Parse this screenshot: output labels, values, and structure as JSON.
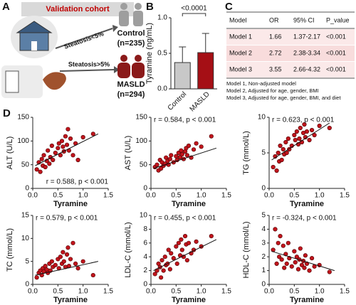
{
  "panel_a": {
    "label": "A",
    "header": "Validation cohort",
    "arrow_top": "Steatosis<5%",
    "arrow_bottom": "Steatosis>5%",
    "group_top": "Control",
    "group_top_n": "(n=235)",
    "group_bottom": "MASLD",
    "group_bottom_n": "(n=294)"
  },
  "panel_labels": {
    "b": "B",
    "c": "C",
    "d": "D"
  },
  "table": {
    "header": [
      "Model",
      "OR",
      "95% CI",
      "P_value"
    ],
    "rows": [
      [
        "Model 1",
        "1.66",
        "1.37-2.17",
        "<0.001"
      ],
      [
        "Model 2",
        "2.72",
        "2.38-3.34",
        "<0.001"
      ],
      [
        "Model 3",
        "3.55",
        "2.66-4.32",
        "<0.001"
      ]
    ],
    "notes": [
      "Model 1, Non-adjusted model",
      "Model 2, Adjusted for age, gender, BMI",
      "Model 3, Adjusted for age, gender, BMI, and diet"
    ]
  },
  "chart_data": [
    {
      "type": "bar",
      "ylabel": "Tyramine (ng/mL)",
      "categories": [
        "Control",
        "MASLD"
      ],
      "values": [
        0.37,
        0.51
      ],
      "errors": [
        0.22,
        0.27
      ],
      "colors": [
        "#c8c8c8",
        "#a50f15"
      ],
      "ylim": [
        0,
        1.0
      ],
      "yticks": [
        {
          "value": 0,
          "label": "0.0"
        },
        {
          "value": 0.5,
          "label": "0.5"
        },
        {
          "value": 1.0,
          "label": "1.0"
        }
      ],
      "annotation": "<0.0001"
    },
    {
      "type": "scatter",
      "ylabel": "ALT (U/L)",
      "xlabel": "Tyramine",
      "annotation": "r = 0.588, p < 0.001",
      "annotation_corner": "lower right",
      "xlim": [
        0,
        1.5
      ],
      "xticks": [
        {
          "value": 0,
          "label": "0.0"
        },
        {
          "value": 0.5,
          "label": "0.5"
        },
        {
          "value": 1.0,
          "label": "1.0"
        },
        {
          "value": 1.5,
          "label": "1.5"
        }
      ],
      "ylim": [
        0,
        150
      ],
      "yticks": [
        0,
        50,
        100,
        150
      ],
      "color": "#c0141c",
      "x": [
        0.08,
        0.12,
        0.15,
        0.18,
        0.2,
        0.22,
        0.25,
        0.28,
        0.3,
        0.33,
        0.35,
        0.38,
        0.4,
        0.45,
        0.5,
        0.52,
        0.55,
        0.58,
        0.6,
        0.62,
        0.65,
        0.68,
        0.7,
        0.72,
        0.75,
        0.8,
        0.85,
        0.9,
        1.0,
        1.2
      ],
      "y": [
        40,
        55,
        35,
        62,
        48,
        70,
        45,
        58,
        80,
        52,
        66,
        90,
        60,
        75,
        85,
        95,
        70,
        100,
        88,
        78,
        110,
        92,
        125,
        80,
        105,
        70,
        95,
        60,
        108,
        115
      ],
      "fit_x": [
        0.05,
        1.3
      ],
      "fit_y": [
        48,
        115
      ]
    },
    {
      "type": "scatter",
      "ylabel": "AST (U/L)",
      "xlabel": "Tyramine",
      "annotation": "r = 0.584, p < 0.001",
      "annotation_corner": "upper left",
      "xlim": [
        0,
        1.5
      ],
      "xticks": [
        {
          "value": 0,
          "label": "0.0"
        },
        {
          "value": 0.5,
          "label": "0.5"
        },
        {
          "value": 1.0,
          "label": "1.0"
        },
        {
          "value": 1.5,
          "label": "1.5"
        }
      ],
      "ylim": [
        0,
        150
      ],
      "yticks": [
        0,
        50,
        100,
        150
      ],
      "color": "#c0141c",
      "x": [
        0.08,
        0.12,
        0.15,
        0.18,
        0.2,
        0.22,
        0.25,
        0.28,
        0.3,
        0.33,
        0.35,
        0.38,
        0.4,
        0.45,
        0.5,
        0.52,
        0.55,
        0.58,
        0.6,
        0.62,
        0.65,
        0.68,
        0.7,
        0.72,
        0.75,
        0.8,
        0.85,
        0.9,
        1.0,
        1.2
      ],
      "y": [
        45,
        50,
        38,
        60,
        42,
        55,
        48,
        52,
        65,
        58,
        50,
        62,
        70,
        55,
        68,
        60,
        75,
        66,
        80,
        72,
        62,
        78,
        85,
        70,
        90,
        65,
        82,
        95,
        88,
        110
      ],
      "fit_x": [
        0.05,
        1.3
      ],
      "fit_y": [
        42,
        85
      ]
    },
    {
      "type": "scatter",
      "ylabel": "TG (mmol/L)",
      "xlabel": "Tyramine",
      "annotation": "r = 0.623, p < 0.001",
      "annotation_corner": "upper left",
      "xlim": [
        0,
        1.5
      ],
      "xticks": [
        {
          "value": 0,
          "label": "0.0"
        },
        {
          "value": 0.5,
          "label": "0.5"
        },
        {
          "value": 1.0,
          "label": "1.0"
        },
        {
          "value": 1.5,
          "label": "1.5"
        }
      ],
      "ylim": [
        0,
        10
      ],
      "yticks": [
        0,
        5,
        10
      ],
      "color": "#c0141c",
      "x": [
        0.08,
        0.12,
        0.15,
        0.18,
        0.2,
        0.22,
        0.25,
        0.28,
        0.3,
        0.33,
        0.35,
        0.38,
        0.4,
        0.45,
        0.5,
        0.52,
        0.55,
        0.58,
        0.6,
        0.62,
        0.65,
        0.68,
        0.7,
        0.72,
        0.75,
        0.8,
        0.85,
        0.9,
        1.0,
        1.2
      ],
      "y": [
        3,
        4.5,
        2.5,
        5,
        3.8,
        6,
        4,
        5.5,
        4.8,
        6.5,
        5,
        7,
        5.5,
        6,
        7.5,
        6.8,
        8,
        6.2,
        7,
        8.5,
        6.5,
        7.8,
        9,
        7.2,
        8,
        6.8,
        8.2,
        7.5,
        8.8,
        8.5
      ],
      "fit_x": [
        0.05,
        1.2
      ],
      "fit_y": [
        4,
        9.2
      ]
    },
    {
      "type": "scatter",
      "ylabel": "TC (mmol/L)",
      "xlabel": "Tyramine",
      "annotation": "r = 0.579, p < 0.001",
      "annotation_corner": "upper left",
      "xlim": [
        0,
        1.5
      ],
      "xticks": [
        {
          "value": 0,
          "label": "0.0"
        },
        {
          "value": 0.5,
          "label": "0.5"
        },
        {
          "value": 1.0,
          "label": "1.0"
        },
        {
          "value": 1.5,
          "label": "1.5"
        }
      ],
      "ylim": [
        0,
        15
      ],
      "yticks": [
        0,
        5,
        10,
        15
      ],
      "color": "#c0141c",
      "x": [
        0.08,
        0.12,
        0.15,
        0.18,
        0.2,
        0.22,
        0.25,
        0.28,
        0.3,
        0.33,
        0.35,
        0.38,
        0.4,
        0.45,
        0.5,
        0.52,
        0.55,
        0.58,
        0.6,
        0.62,
        0.65,
        0.68,
        0.7,
        0.72,
        0.75,
        0.8,
        0.85,
        0.9,
        1.0,
        1.2
      ],
      "y": [
        1.5,
        2.5,
        3,
        2,
        3.5,
        2.8,
        4,
        3.2,
        2.5,
        4.5,
        3,
        5,
        3.8,
        4.2,
        5.5,
        3.5,
        6,
        4.5,
        7,
        5,
        3.8,
        6.5,
        8,
        4,
        5.5,
        9,
        4.5,
        3.5,
        5,
        2
      ],
      "fit_x": [
        0.05,
        1.3
      ],
      "fit_y": [
        2,
        5
      ]
    },
    {
      "type": "scatter",
      "ylabel": "LDL-C (mmol/L)",
      "xlabel": "Tyramine",
      "annotation": "r = 0.455, p < 0.001",
      "annotation_corner": "upper left",
      "xlim": [
        0,
        1.5
      ],
      "xticks": [
        {
          "value": 0,
          "label": "0.0"
        },
        {
          "value": 0.5,
          "label": "0.5"
        },
        {
          "value": 1.0,
          "label": "1.0"
        },
        {
          "value": 1.5,
          "label": "1.5"
        }
      ],
      "ylim": [
        0,
        10
      ],
      "yticks": [
        0,
        2,
        4,
        6,
        8,
        10
      ],
      "color": "#c0141c",
      "x": [
        0.08,
        0.12,
        0.15,
        0.18,
        0.2,
        0.22,
        0.25,
        0.28,
        0.3,
        0.33,
        0.35,
        0.38,
        0.4,
        0.45,
        0.5,
        0.52,
        0.55,
        0.58,
        0.6,
        0.62,
        0.65,
        0.68,
        0.7,
        0.72,
        0.75,
        0.8,
        0.85,
        0.9,
        1.0,
        1.2
      ],
      "y": [
        1.5,
        2,
        3,
        2.5,
        1,
        3.5,
        2,
        4,
        2.8,
        3,
        5,
        2.2,
        4.5,
        3.8,
        5.5,
        3,
        6,
        4.2,
        6.5,
        5,
        4,
        7,
        5.8,
        3.5,
        6,
        4.5,
        5,
        6.2,
        5.5,
        7
      ],
      "fit_x": [
        0.05,
        1.3
      ],
      "fit_y": [
        2,
        6.5
      ]
    },
    {
      "type": "scatter",
      "ylabel": "HDL-C (mmol/L)",
      "xlabel": "Tyramine",
      "annotation": "r = -0.324, p < 0.001",
      "annotation_corner": "upper left",
      "xlim": [
        0,
        1.5
      ],
      "xticks": [
        {
          "value": 0,
          "label": "0.0"
        },
        {
          "value": 0.5,
          "label": "0.5"
        },
        {
          "value": 1.0,
          "label": "1.0"
        },
        {
          "value": 1.5,
          "label": "1.5"
        }
      ],
      "ylim": [
        0,
        5
      ],
      "yticks": [
        0,
        1,
        2,
        3,
        4,
        5
      ],
      "color": "#c0141c",
      "x": [
        0.08,
        0.12,
        0.15,
        0.18,
        0.2,
        0.22,
        0.25,
        0.28,
        0.3,
        0.33,
        0.35,
        0.38,
        0.4,
        0.45,
        0.5,
        0.52,
        0.55,
        0.58,
        0.6,
        0.62,
        0.65,
        0.68,
        0.7,
        0.72,
        0.75,
        0.8,
        0.85,
        0.9,
        1.0,
        1.2
      ],
      "y": [
        2.5,
        4,
        1.5,
        3,
        2,
        3.5,
        1.8,
        2.8,
        1.2,
        2.2,
        1.5,
        3,
        1.9,
        1.3,
        2.4,
        1.6,
        2,
        1.1,
        1.8,
        2.6,
        1.4,
        1.7,
        1.2,
        2.1,
        1.5,
        1,
        1.9,
        1.3,
        1.4,
        0.9
      ],
      "fit_x": [
        0.05,
        1.3
      ],
      "fit_y": [
        2.4,
        1.0
      ]
    }
  ]
}
